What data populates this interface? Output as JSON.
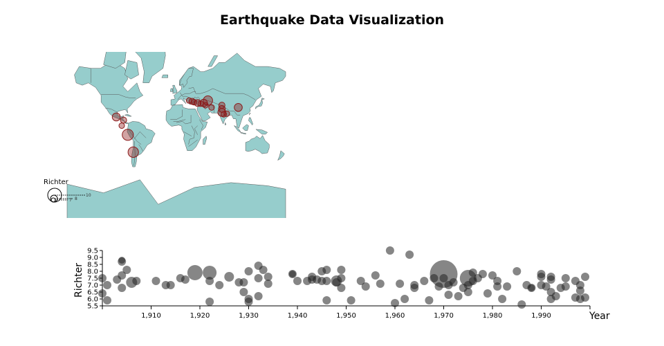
{
  "title": "Earthquake Data Visualization",
  "colors": {
    "land": "#96cdcc",
    "land_stroke": "#555555",
    "quake_fill": "#8b1a1a",
    "scatter_fill": "#222222"
  },
  "legend": {
    "title": "Richter",
    "labels": [
      "10",
      "8",
      "7"
    ]
  },
  "chart_data": [
    {
      "type": "map",
      "projection": "mercator",
      "legend_title": "Richter",
      "points": [
        {
          "lon": -99,
          "lat": 19,
          "mag": 7.8
        },
        {
          "lon": -87,
          "lat": 14,
          "mag": 7.5
        },
        {
          "lon": -90,
          "lat": 5,
          "mag": 7.2
        },
        {
          "lon": -80,
          "lat": -10,
          "mag": 8.3
        },
        {
          "lon": -71,
          "lat": -36,
          "mag": 8.2
        },
        {
          "lon": 21,
          "lat": 42,
          "mag": 7.1
        },
        {
          "lon": 26,
          "lat": 41,
          "mag": 7.5
        },
        {
          "lon": 29,
          "lat": 40,
          "mag": 7.4
        },
        {
          "lon": 35,
          "lat": 39,
          "mag": 7.6
        },
        {
          "lon": 40,
          "lat": 38,
          "mag": 7.2
        },
        {
          "lon": 45,
          "lat": 39,
          "mag": 7.7
        },
        {
          "lon": 48,
          "lat": 36,
          "mag": 7.3
        },
        {
          "lon": 52,
          "lat": 42,
          "mag": 8.0
        },
        {
          "lon": 58,
          "lat": 33,
          "mag": 7.4
        },
        {
          "lon": 75,
          "lat": 36,
          "mag": 7.5
        },
        {
          "lon": 75,
          "lat": 31,
          "mag": 7.6
        },
        {
          "lon": 75,
          "lat": 26,
          "mag": 7.8
        },
        {
          "lon": 78,
          "lat": 23,
          "mag": 7.2
        },
        {
          "lon": 83,
          "lat": 24,
          "mag": 7.4
        },
        {
          "lon": 102,
          "lat": 33,
          "mag": 7.8
        }
      ]
    },
    {
      "type": "scatter",
      "xlabel": "Year",
      "ylabel": "Richter",
      "xlim": [
        1900,
        2000
      ],
      "ylim": [
        5.5,
        9.5
      ],
      "xticks": [
        "1,910",
        "1,920",
        "1,930",
        "1,940",
        "1,950",
        "1,960",
        "1,970",
        "1,980",
        "1,990"
      ],
      "yticks": [
        "5.5",
        "6.0",
        "6.5",
        "7.0",
        "7.5",
        "8.0",
        "8.5",
        "9.0",
        "9.5"
      ],
      "points": [
        {
          "x": 1900,
          "y": 7.5,
          "s": 6
        },
        {
          "x": 1900,
          "y": 6.4,
          "s": 6
        },
        {
          "x": 1901,
          "y": 7.0,
          "s": 6
        },
        {
          "x": 1901,
          "y": 5.9,
          "s": 6
        },
        {
          "x": 1903,
          "y": 7.4,
          "s": 6
        },
        {
          "x": 1904,
          "y": 7.7,
          "s": 6
        },
        {
          "x": 1904,
          "y": 6.8,
          "s": 6
        },
        {
          "x": 1904,
          "y": 8.7,
          "s": 6
        },
        {
          "x": 1904,
          "y": 8.8,
          "s": 5
        },
        {
          "x": 1905,
          "y": 8.1,
          "s": 6
        },
        {
          "x": 1906,
          "y": 7.2,
          "s": 8
        },
        {
          "x": 1907,
          "y": 7.3,
          "s": 6
        },
        {
          "x": 1911,
          "y": 7.3,
          "s": 6
        },
        {
          "x": 1913,
          "y": 7.0,
          "s": 6
        },
        {
          "x": 1914,
          "y": 7.0,
          "s": 6
        },
        {
          "x": 1916,
          "y": 7.5,
          "s": 6
        },
        {
          "x": 1917,
          "y": 7.4,
          "s": 6
        },
        {
          "x": 1919,
          "y": 7.9,
          "s": 11
        },
        {
          "x": 1922,
          "y": 7.9,
          "s": 10
        },
        {
          "x": 1922,
          "y": 7.3,
          "s": 6
        },
        {
          "x": 1922,
          "y": 5.8,
          "s": 6
        },
        {
          "x": 1924,
          "y": 7.0,
          "s": 6
        },
        {
          "x": 1926,
          "y": 7.6,
          "s": 7
        },
        {
          "x": 1928,
          "y": 7.2,
          "s": 6
        },
        {
          "x": 1929,
          "y": 6.5,
          "s": 6
        },
        {
          "x": 1929,
          "y": 7.2,
          "s": 6
        },
        {
          "x": 1930,
          "y": 8.0,
          "s": 6
        },
        {
          "x": 1930,
          "y": 6.0,
          "s": 6
        },
        {
          "x": 1930,
          "y": 5.8,
          "s": 6
        },
        {
          "x": 1932,
          "y": 8.4,
          "s": 6
        },
        {
          "x": 1932,
          "y": 7.5,
          "s": 6
        },
        {
          "x": 1932,
          "y": 6.2,
          "s": 6
        },
        {
          "x": 1933,
          "y": 8.1,
          "s": 6
        },
        {
          "x": 1934,
          "y": 7.6,
          "s": 6
        },
        {
          "x": 1934,
          "y": 7.1,
          "s": 6
        },
        {
          "x": 1939,
          "y": 7.8,
          "s": 6
        },
        {
          "x": 1939,
          "y": 7.8,
          "s": 5
        },
        {
          "x": 1940,
          "y": 7.3,
          "s": 6
        },
        {
          "x": 1942,
          "y": 7.3,
          "s": 6
        },
        {
          "x": 1943,
          "y": 7.6,
          "s": 6
        },
        {
          "x": 1943,
          "y": 7.4,
          "s": 6
        },
        {
          "x": 1944,
          "y": 7.4,
          "s": 6
        },
        {
          "x": 1945,
          "y": 8.0,
          "s": 6
        },
        {
          "x": 1945,
          "y": 7.3,
          "s": 6
        },
        {
          "x": 1946,
          "y": 8.1,
          "s": 6
        },
        {
          "x": 1946,
          "y": 7.3,
          "s": 6
        },
        {
          "x": 1946,
          "y": 5.9,
          "s": 6
        },
        {
          "x": 1948,
          "y": 7.3,
          "s": 8
        },
        {
          "x": 1948,
          "y": 7.2,
          "s": 6
        },
        {
          "x": 1949,
          "y": 8.1,
          "s": 6
        },
        {
          "x": 1949,
          "y": 6.8,
          "s": 6
        },
        {
          "x": 1949,
          "y": 7.5,
          "s": 6
        },
        {
          "x": 1951,
          "y": 5.9,
          "s": 6
        },
        {
          "x": 1953,
          "y": 7.3,
          "s": 6
        },
        {
          "x": 1954,
          "y": 6.9,
          "s": 6
        },
        {
          "x": 1956,
          "y": 7.7,
          "s": 6
        },
        {
          "x": 1957,
          "y": 7.1,
          "s": 6
        },
        {
          "x": 1959,
          "y": 9.5,
          "s": 6
        },
        {
          "x": 1960,
          "y": 5.7,
          "s": 6
        },
        {
          "x": 1961,
          "y": 7.1,
          "s": 6
        },
        {
          "x": 1962,
          "y": 6.0,
          "s": 6
        },
        {
          "x": 1963,
          "y": 9.2,
          "s": 6
        },
        {
          "x": 1964,
          "y": 7.0,
          "s": 6
        },
        {
          "x": 1964,
          "y": 6.8,
          "s": 6
        },
        {
          "x": 1966,
          "y": 7.3,
          "s": 6
        },
        {
          "x": 1967,
          "y": 5.9,
          "s": 6
        },
        {
          "x": 1968,
          "y": 7.5,
          "s": 6
        },
        {
          "x": 1969,
          "y": 6.9,
          "s": 6
        },
        {
          "x": 1970,
          "y": 7.8,
          "s": 20
        },
        {
          "x": 1970,
          "y": 7.5,
          "s": 6
        },
        {
          "x": 1971,
          "y": 6.3,
          "s": 6
        },
        {
          "x": 1971,
          "y": 7.0,
          "s": 6
        },
        {
          "x": 1972,
          "y": 7.2,
          "s": 6
        },
        {
          "x": 1973,
          "y": 6.2,
          "s": 6
        },
        {
          "x": 1974,
          "y": 6.8,
          "s": 6
        },
        {
          "x": 1975,
          "y": 7.5,
          "s": 12
        },
        {
          "x": 1975,
          "y": 7.0,
          "s": 6
        },
        {
          "x": 1975,
          "y": 6.5,
          "s": 6
        },
        {
          "x": 1976,
          "y": 7.9,
          "s": 6
        },
        {
          "x": 1976,
          "y": 7.3,
          "s": 6
        },
        {
          "x": 1977,
          "y": 7.5,
          "s": 6
        },
        {
          "x": 1978,
          "y": 7.8,
          "s": 6
        },
        {
          "x": 1979,
          "y": 6.4,
          "s": 6
        },
        {
          "x": 1980,
          "y": 7.7,
          "s": 6
        },
        {
          "x": 1981,
          "y": 7.3,
          "s": 6
        },
        {
          "x": 1981,
          "y": 6.9,
          "s": 6
        },
        {
          "x": 1982,
          "y": 6.0,
          "s": 6
        },
        {
          "x": 1983,
          "y": 6.9,
          "s": 6
        },
        {
          "x": 1985,
          "y": 8.0,
          "s": 6
        },
        {
          "x": 1986,
          "y": 5.6,
          "s": 6
        },
        {
          "x": 1987,
          "y": 7.0,
          "s": 6
        },
        {
          "x": 1988,
          "y": 6.8,
          "s": 6
        },
        {
          "x": 1988,
          "y": 6.8,
          "s": 5
        },
        {
          "x": 1990,
          "y": 7.8,
          "s": 6
        },
        {
          "x": 1990,
          "y": 7.6,
          "s": 6
        },
        {
          "x": 1990,
          "y": 7.0,
          "s": 6
        },
        {
          "x": 1991,
          "y": 6.9,
          "s": 6
        },
        {
          "x": 1992,
          "y": 7.6,
          "s": 6
        },
        {
          "x": 1992,
          "y": 7.4,
          "s": 6
        },
        {
          "x": 1992,
          "y": 6.5,
          "s": 6
        },
        {
          "x": 1992,
          "y": 6.0,
          "s": 6
        },
        {
          "x": 1993,
          "y": 6.2,
          "s": 6
        },
        {
          "x": 1994,
          "y": 6.8,
          "s": 6
        },
        {
          "x": 1995,
          "y": 6.9,
          "s": 6
        },
        {
          "x": 1995,
          "y": 7.5,
          "s": 6
        },
        {
          "x": 1997,
          "y": 7.3,
          "s": 6
        },
        {
          "x": 1997,
          "y": 6.1,
          "s": 6
        },
        {
          "x": 1998,
          "y": 7.0,
          "s": 6
        },
        {
          "x": 1998,
          "y": 6.6,
          "s": 6
        },
        {
          "x": 1998,
          "y": 6.0,
          "s": 6
        },
        {
          "x": 1999,
          "y": 7.6,
          "s": 6
        },
        {
          "x": 1999,
          "y": 6.1,
          "s": 6
        }
      ]
    }
  ]
}
